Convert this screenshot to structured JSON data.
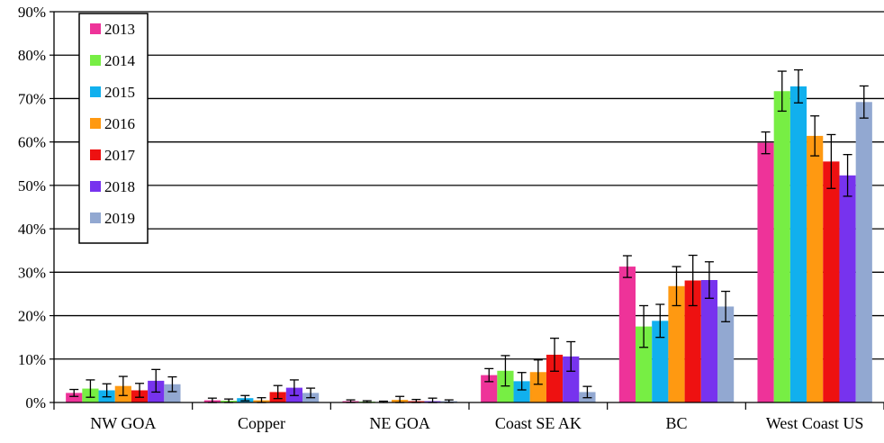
{
  "chart_data": {
    "type": "bar",
    "title": "",
    "xlabel": "",
    "ylabel": "",
    "ylim": [
      0,
      90
    ],
    "y_ticks": [
      0,
      10,
      20,
      30,
      40,
      50,
      60,
      70,
      80,
      90
    ],
    "y_tick_labels": [
      "0%",
      "10%",
      "20%",
      "30%",
      "40%",
      "50%",
      "60%",
      "70%",
      "80%",
      "90%"
    ],
    "grid": "horizontal",
    "legend_position": "top-left",
    "categories": [
      "NW GOA",
      "Copper",
      "NE GOA",
      "Coast SE AK",
      "BC",
      "West Coast US"
    ],
    "series": [
      {
        "name": "2013",
        "color": "#ee3399",
        "values": [
          2.2,
          0.5,
          0.3,
          6.3,
          31.3,
          59.8
        ],
        "errors": [
          0.8,
          0.5,
          0.3,
          1.5,
          2.5,
          2.5
        ]
      },
      {
        "name": "2014",
        "color": "#77ee44",
        "values": [
          3.2,
          0.4,
          0.2,
          7.3,
          17.5,
          71.7
        ],
        "errors": [
          2.0,
          0.4,
          0.2,
          3.5,
          4.8,
          4.6
        ]
      },
      {
        "name": "2015",
        "color": "#11b0ee",
        "values": [
          2.8,
          1.0,
          0.1,
          4.9,
          18.8,
          72.8
        ],
        "errors": [
          1.5,
          0.6,
          0.2,
          2.0,
          3.8,
          3.8
        ]
      },
      {
        "name": "2016",
        "color": "#ff9911",
        "values": [
          3.8,
          0.5,
          0.6,
          7.0,
          26.8,
          61.4
        ],
        "errors": [
          2.2,
          0.6,
          0.8,
          2.8,
          4.5,
          4.6
        ]
      },
      {
        "name": "2017",
        "color": "#ee1111",
        "values": [
          2.8,
          2.4,
          0.3,
          11.0,
          28.1,
          55.5
        ],
        "errors": [
          1.6,
          1.5,
          0.4,
          3.8,
          5.8,
          6.2
        ]
      },
      {
        "name": "2018",
        "color": "#7733ee",
        "values": [
          5.0,
          3.4,
          0.3,
          10.6,
          28.2,
          52.3
        ],
        "errors": [
          2.6,
          1.8,
          0.7,
          3.4,
          4.2,
          4.8
        ]
      },
      {
        "name": "2019",
        "color": "#92a8d1",
        "values": [
          4.2,
          2.2,
          0.3,
          2.4,
          22.1,
          69.2
        ],
        "errors": [
          1.7,
          1.1,
          0.3,
          1.3,
          3.5,
          3.7
        ]
      }
    ]
  }
}
